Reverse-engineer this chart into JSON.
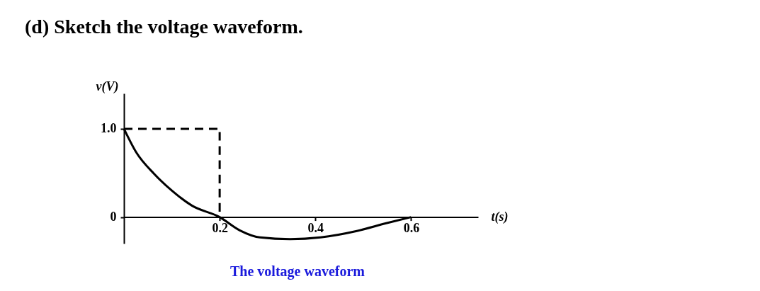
{
  "chart_data": {
    "type": "line",
    "title": "(d) Sketch the voltage waveform.",
    "xlabel": "t(s)",
    "ylabel": "v(V)",
    "annotations": [
      "The  voltage waveform"
    ],
    "xlim": [
      0,
      0.74
    ],
    "ylim": [
      -0.3,
      1.4
    ],
    "xticks": [
      0.2,
      0.4,
      0.6
    ],
    "yticks": [
      {
        "value": 0,
        "label": "0"
      },
      {
        "value": 1,
        "label": "1.0"
      }
    ],
    "grid": false,
    "marker": "none",
    "series": [
      {
        "color": "#000000",
        "line_style": "solid",
        "x": [
          0,
          0.026,
          0.063,
          0.1,
          0.142,
          0.2,
          0.242,
          0.284,
          0.347,
          0.411,
          0.485,
          0.548,
          0.6
        ],
        "values": [
          1.0,
          0.73,
          0.49,
          0.3,
          0.13,
          0,
          -0.15,
          -0.23,
          -0.25,
          -0.23,
          -0.16,
          -0.07,
          0
        ]
      },
      {
        "color": "#000000",
        "line_style": "dashed",
        "x": [
          0,
          0.2,
          0.2
        ],
        "values": [
          1.0,
          1.0,
          0
        ]
      }
    ]
  }
}
